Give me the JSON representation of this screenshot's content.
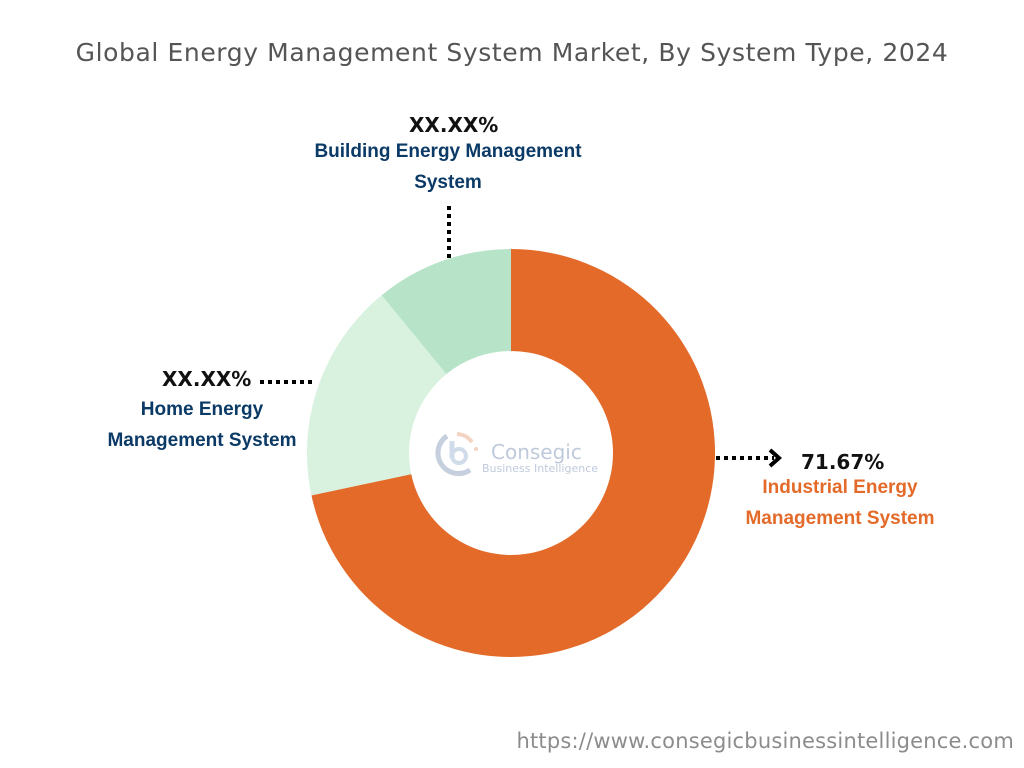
{
  "chart_data": {
    "type": "pie",
    "variant": "donut",
    "title": "Global Energy Management System Market, By System Type, 2024",
    "categories": [
      "Industrial Energy Management System",
      "Home Energy Management System",
      "Building Energy Management System"
    ],
    "values": [
      71.67,
      17.4,
      10.93
    ],
    "value_labels": [
      "71.67%",
      "XX.XX%",
      "XX.XX%"
    ],
    "colors": [
      "#e36a28",
      "#d8f2df",
      "#b7e4c9"
    ],
    "start_angle_deg": 0,
    "direction": "clockwise",
    "legend": "none (callout labels)",
    "note": "Home and Building shares shown as XX.XX%; numeric values estimated from slice angles"
  },
  "title": "Global Energy Management System Market, By System Type, 2024",
  "labels": {
    "building": {
      "pct": "XX.XX%",
      "line1": "Building Energy Management",
      "line2": "System"
    },
    "home": {
      "pct": "XX.XX%",
      "line1": "Home Energy",
      "line2": "Management System"
    },
    "industrial": {
      "pct": "71.67%",
      "line1": "Industrial Energy",
      "line2": "Management System"
    }
  },
  "logo": {
    "name": "Consegic",
    "tagline": "Business Intelligence"
  },
  "footer": {
    "url": "https://www.consegicbusinessintelligence.com"
  },
  "colors": {
    "navy_label": "#0b3a66",
    "orange_label": "#e36a28",
    "title": "#555555",
    "footer": "#8c8c8c"
  }
}
